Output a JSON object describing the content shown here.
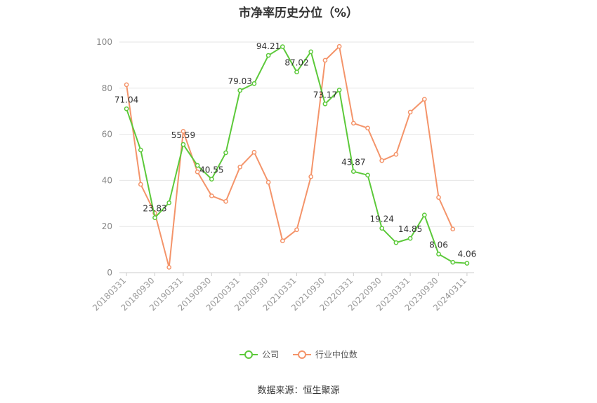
{
  "chart_data": {
    "type": "line",
    "title": "市净率历史分位（%）",
    "ylim": [
      0,
      100
    ],
    "y_ticks": [
      "0",
      "20",
      "40",
      "60",
      "80",
      "100"
    ],
    "x_ticks": [
      "20180331",
      "20180930",
      "20190331",
      "20190930",
      "20200331",
      "20200930",
      "20210331",
      "20210930",
      "20220331",
      "20220930",
      "20230331",
      "20230930",
      "20240311"
    ],
    "x": [
      "20180331",
      "20180630",
      "20180930",
      "20181231",
      "20190331",
      "20190630",
      "20190930",
      "20191231",
      "20200331",
      "20200630",
      "20200930",
      "20201231",
      "20210331",
      "20210630",
      "20210930",
      "20211231",
      "20220331",
      "20220630",
      "20220930",
      "20221231",
      "20230331",
      "20230630",
      "20230930",
      "20231231",
      "20240311"
    ],
    "grid": true,
    "legend_position": "bottom",
    "series": [
      {
        "name": "公司",
        "color": "#5cc93a",
        "values": [
          71.04,
          53.2,
          23.83,
          30.3,
          55.59,
          46.5,
          40.55,
          52.0,
          79.03,
          82.0,
          94.21,
          98.0,
          87.02,
          95.8,
          73.17,
          79.2,
          43.87,
          42.3,
          19.24,
          13.0,
          14.85,
          25.0,
          8.06,
          4.5,
          4.06
        ],
        "labels": [
          "71.04",
          "",
          "23.83",
          "",
          "55.59",
          "",
          "40.55",
          "",
          "79.03",
          "",
          "94.21",
          "",
          "87.02",
          "",
          "73.17",
          "",
          "43.87",
          "",
          "19.24",
          "",
          "14.85",
          "",
          "8.06",
          "",
          "4.06"
        ]
      },
      {
        "name": "行业中位数",
        "color": "#f4946a",
        "values": [
          81.5,
          38.3,
          25.8,
          2.3,
          61.3,
          43.7,
          33.3,
          30.9,
          45.8,
          52.2,
          39.2,
          13.8,
          18.6,
          41.6,
          92.1,
          98.1,
          64.8,
          62.7,
          48.6,
          51.3,
          69.6,
          75.2,
          32.6,
          18.9,
          null
        ],
        "labels": []
      }
    ]
  },
  "source_text": "数据来源：恒生聚源"
}
